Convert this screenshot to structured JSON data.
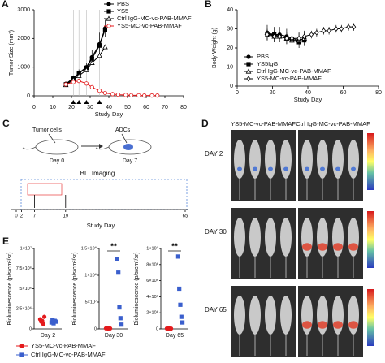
{
  "chart_data": [
    {
      "type": "line",
      "panel": "A",
      "ylabel": "Tumor Size (mm³)",
      "xlabel": "Study Day",
      "xlim": [
        0,
        80
      ],
      "xticks": [
        0,
        10,
        20,
        30,
        40,
        50,
        60,
        70,
        80
      ],
      "ylim": [
        0,
        3000
      ],
      "yticks": [
        0,
        1000,
        2000,
        3000
      ],
      "legend": "top-right",
      "dosing_days": [
        21,
        24,
        28,
        35
      ],
      "series": [
        {
          "name": "PBS",
          "color": "#000000",
          "marker": "circle",
          "filled": true,
          "x": [
            17,
            21,
            24,
            28,
            31,
            35,
            38
          ],
          "values": [
            420,
            620,
            800,
            1000,
            1350,
            1800,
            2350
          ],
          "errors": [
            60,
            90,
            120,
            150,
            250,
            400,
            300
          ]
        },
        {
          "name": "YS5",
          "color": "#000000",
          "marker": "square",
          "filled": true,
          "x": [
            17,
            21,
            24,
            28,
            31,
            35,
            38
          ],
          "values": [
            400,
            600,
            780,
            980,
            1300,
            1750,
            2300
          ]
        },
        {
          "name": "Ctrl IgG-MC-vc-PAB-MMAF",
          "color": "#000000",
          "marker": "triangle",
          "filled": false,
          "x": [
            17,
            21,
            24,
            28,
            31,
            35,
            38
          ],
          "values": [
            380,
            560,
            700,
            900,
            1150,
            1400,
            1700
          ]
        },
        {
          "name": "YS5-MC-vc-PAB-MMAF",
          "color": "#e41a1c",
          "marker": "circle",
          "filled": false,
          "x": [
            17,
            21,
            24,
            28,
            31,
            35,
            38,
            42,
            45,
            49,
            52,
            56,
            59,
            63,
            66
          ],
          "values": [
            400,
            480,
            520,
            430,
            300,
            180,
            100,
            60,
            40,
            30,
            20,
            15,
            10,
            10,
            10
          ]
        }
      ]
    },
    {
      "type": "line",
      "panel": "B",
      "ylabel": "Body Weight (g)",
      "xlabel": "Study Day",
      "xlim": [
        0,
        80
      ],
      "xticks": [
        0,
        20,
        40,
        60,
        80
      ],
      "ylim": [
        0,
        40
      ],
      "yticks": [
        0,
        10,
        20,
        30,
        40
      ],
      "legend": "bottom-left",
      "series": [
        {
          "name": "PBS",
          "color": "#000000",
          "marker": "circle",
          "filled": true,
          "x": [
            17,
            21,
            24,
            28,
            31,
            35,
            38
          ],
          "values": [
            28,
            27,
            27,
            26,
            25,
            24,
            25
          ],
          "errors": [
            4,
            4,
            4,
            4,
            4,
            4,
            4
          ]
        },
        {
          "name": "YS5IgG",
          "color": "#000000",
          "marker": "square",
          "filled": true,
          "x": [
            17,
            21,
            24,
            28,
            31,
            35,
            38
          ],
          "values": [
            27,
            27,
            26,
            25,
            24,
            23,
            24
          ]
        },
        {
          "name": "Ctrl IgG-MC-vc-PAB-MMAF",
          "color": "#000000",
          "marker": "triangle",
          "filled": false,
          "x": [
            17,
            21,
            24,
            28,
            31,
            35,
            38
          ],
          "values": [
            28,
            26,
            26,
            25,
            24,
            24,
            25
          ]
        },
        {
          "name": "YS5-MC-vc-PAB-MMAF",
          "color": "#000000",
          "marker": "diamond",
          "filled": false,
          "x": [
            17,
            21,
            24,
            28,
            31,
            35,
            38,
            42,
            45,
            49,
            52,
            56,
            59,
            63,
            66
          ],
          "values": [
            27,
            26,
            26,
            25,
            25,
            25,
            26,
            27,
            28,
            29,
            29,
            30,
            30,
            31,
            31
          ],
          "errors": [
            3,
            3,
            3,
            3,
            3,
            3,
            2,
            2,
            2,
            2,
            2,
            2,
            2,
            2,
            2
          ]
        }
      ]
    },
    {
      "type": "strip",
      "panel": "E",
      "ylabel": "Bioluminescence (p/s/cm²/sr)",
      "categories": [
        "Day 2"
      ],
      "ylim": [
        0,
        10000000
      ],
      "yticks": [
        0,
        {
          "value": 2500000,
          "label": "2.5×10⁶"
        },
        {
          "value": 5000000,
          "label": "5×10⁶"
        },
        {
          "value": 7500000,
          "label": "7.5×10⁶"
        },
        {
          "value": 10000000,
          "label": "1×10⁷"
        }
      ],
      "series": [
        {
          "name": "YS5-MC-vc-PAB-MMAF",
          "color": "#e41a1c",
          "marker": "circle",
          "values": [
            1200000,
            900000,
            1000000,
            600000,
            1500000
          ]
        },
        {
          "name": "Ctrl IgG-MC-vc-PAB-MMAF",
          "color": "#3a5fcd",
          "marker": "square",
          "values": [
            800000,
            1100000,
            700000,
            1000000,
            900000
          ]
        }
      ]
    },
    {
      "type": "strip",
      "ylabel": "Bioluminescence (p/s/cm²/sr)",
      "categories": [
        "Day 30"
      ],
      "annotation": "**",
      "ylim": [
        0,
        150000000
      ],
      "yticks": [
        0,
        {
          "value": 50000000,
          "label": "5×10⁷"
        },
        {
          "value": 100000000,
          "label": "1×10⁸"
        },
        {
          "value": 150000000,
          "label": "1.5×10⁸"
        }
      ],
      "series": [
        {
          "color": "#e41a1c",
          "marker": "circle",
          "values": [
            1000000,
            2000000,
            500000,
            1500000,
            800000
          ]
        },
        {
          "color": "#3a5fcd",
          "marker": "square",
          "values": [
            130000000,
            105000000,
            40000000,
            20000000,
            8000000
          ]
        }
      ]
    },
    {
      "type": "strip",
      "ylabel": "Bioluminescence (p/s/cm²/sr)",
      "categories": [
        "Day 65"
      ],
      "annotation": "**",
      "ylim": [
        0,
        1000000000
      ],
      "yticks": [
        0,
        {
          "value": 200000000,
          "label": "2×10⁸"
        },
        {
          "value": 400000000,
          "label": "4×10⁸"
        },
        {
          "value": 600000000,
          "label": "6×10⁸"
        },
        {
          "value": 800000000,
          "label": "8×10⁸"
        },
        {
          "value": 1000000000,
          "label": "1×10⁹"
        }
      ],
      "series": [
        {
          "color": "#e41a1c",
          "marker": "circle",
          "values": [
            5000000,
            3000000,
            8000000,
            2000000,
            4000000
          ]
        },
        {
          "color": "#3a5fcd",
          "marker": "square",
          "values": [
            900000000,
            500000000,
            300000000,
            150000000,
            80000000
          ]
        }
      ]
    }
  ],
  "panel_c": {
    "label": "C",
    "tumor_cells": "Tumor cells",
    "adcs": "ADCs",
    "day0": "Day 0",
    "day7": "Day 7",
    "imaging": "BLI Imaging",
    "timeline": {
      "xlim": [
        0,
        65
      ],
      "xticks": [
        0,
        2,
        7,
        19,
        65
      ],
      "xlabel": "Study Day"
    }
  },
  "panel_d": {
    "label": "D",
    "columns": [
      "YS5-MC-vc-PAB-MMAF",
      "Ctrl IgG-MC-vc-PAB-MMAF"
    ],
    "rows": [
      "DAY 2",
      "DAY 30",
      "DAY 65"
    ]
  }
}
